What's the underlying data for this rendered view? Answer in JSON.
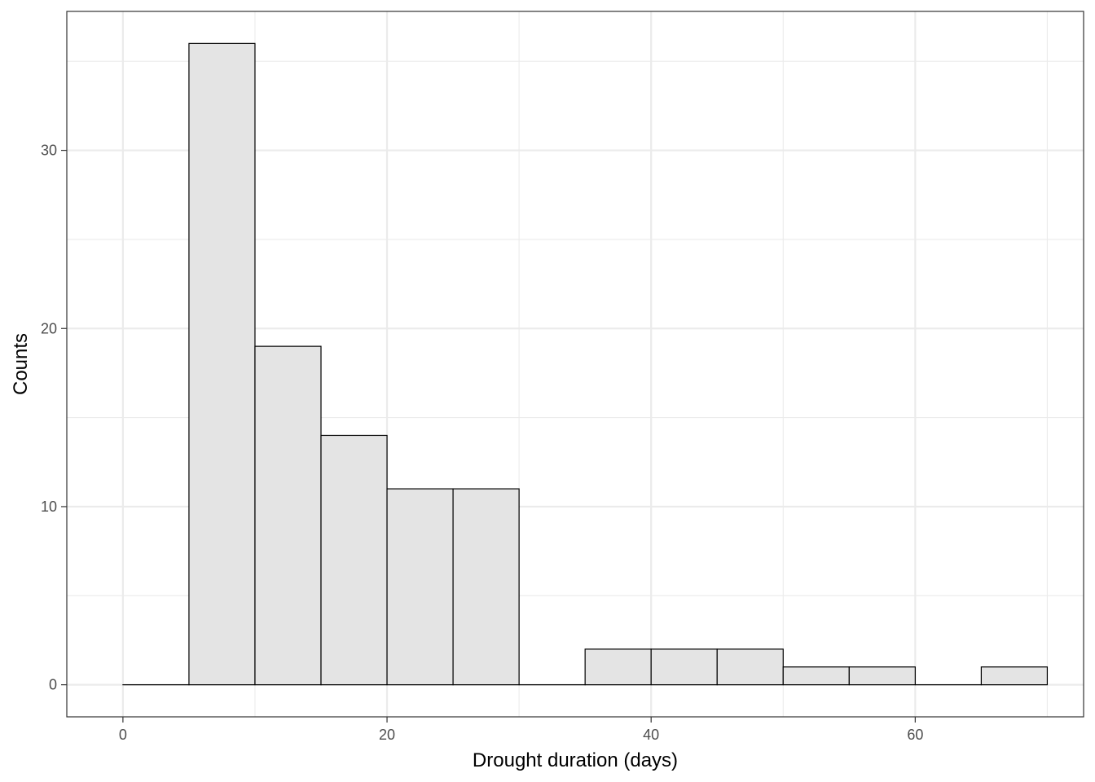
{
  "chart_data": {
    "type": "bar",
    "subtype": "histogram",
    "xlabel": "Drought duration (days)",
    "ylabel": "Counts",
    "xlim": [
      -4.25,
      72.75
    ],
    "ylim": [
      -1.8,
      37.8
    ],
    "x_ticks": [
      0,
      20,
      40,
      60
    ],
    "y_ticks": [
      0,
      10,
      20,
      30
    ],
    "x_minor_ticks": [
      10,
      30,
      50,
      70
    ],
    "y_minor_ticks": [
      5,
      15,
      25,
      35
    ],
    "bin_width": 5,
    "bins": [
      {
        "x_start": 0,
        "x_end": 5,
        "count": 0
      },
      {
        "x_start": 5,
        "x_end": 10,
        "count": 36
      },
      {
        "x_start": 10,
        "x_end": 15,
        "count": 19
      },
      {
        "x_start": 15,
        "x_end": 20,
        "count": 14
      },
      {
        "x_start": 20,
        "x_end": 25,
        "count": 11
      },
      {
        "x_start": 25,
        "x_end": 30,
        "count": 11
      },
      {
        "x_start": 30,
        "x_end": 35,
        "count": 0
      },
      {
        "x_start": 35,
        "x_end": 40,
        "count": 2
      },
      {
        "x_start": 40,
        "x_end": 45,
        "count": 2
      },
      {
        "x_start": 45,
        "x_end": 50,
        "count": 2
      },
      {
        "x_start": 50,
        "x_end": 55,
        "count": 1
      },
      {
        "x_start": 55,
        "x_end": 60,
        "count": 1
      },
      {
        "x_start": 60,
        "x_end": 65,
        "count": 0
      },
      {
        "x_start": 65,
        "x_end": 70,
        "count": 1
      }
    ],
    "grid": true,
    "legend": "none",
    "colors": {
      "bar_fill": "#e4e4e4",
      "bar_stroke": "#000000",
      "grid": "#ebebeb",
      "panel_border": "#333333",
      "tick_label": "#4d4d4d"
    }
  }
}
